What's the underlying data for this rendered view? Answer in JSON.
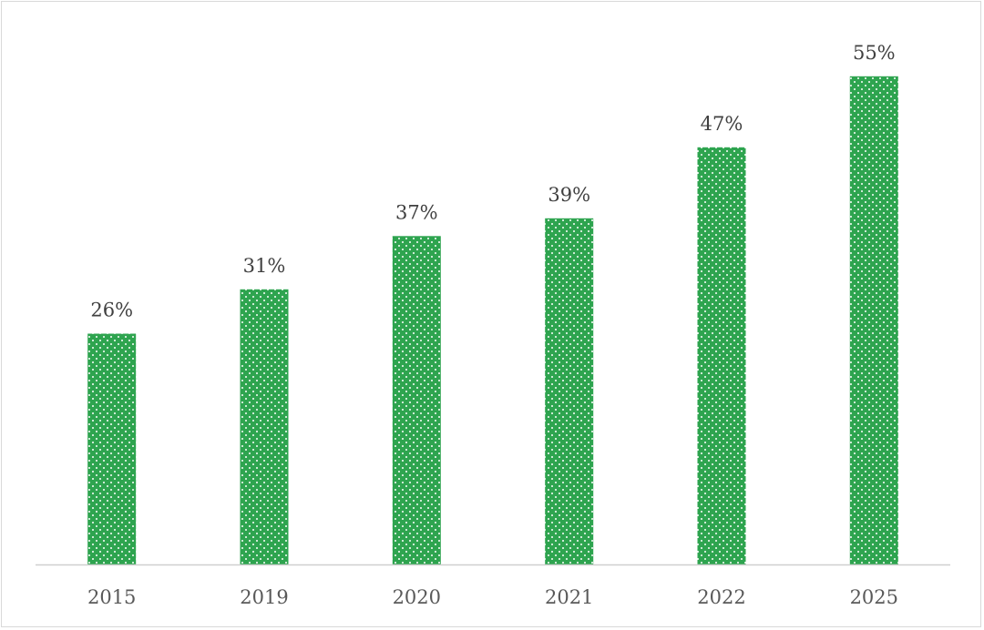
{
  "chart_data": {
    "type": "bar",
    "categories": [
      "2015",
      "2019",
      "2020",
      "2021",
      "2022",
      "2025"
    ],
    "values": [
      26,
      31,
      37,
      39,
      47,
      55
    ],
    "data_labels": [
      "26%",
      "31%",
      "37%",
      "39%",
      "47%",
      "55%"
    ],
    "value_format": "percent",
    "title": "",
    "xlabel": "",
    "ylabel": "",
    "ylim": [
      0,
      60
    ],
    "y_axis_visible": false,
    "grid": false,
    "legend": "none",
    "colors": {
      "bar_fill": "#2ea44f",
      "bar_pattern_dot": "#ffffff",
      "axis_line": "#d0d0d0",
      "frame_border": "#d9d9d9"
    }
  }
}
